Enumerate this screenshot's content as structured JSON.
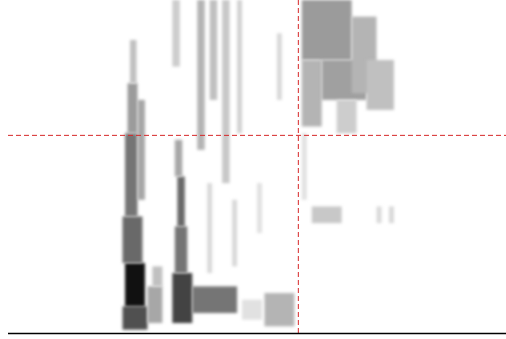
{
  "chart_data": {
    "type": "heatmap",
    "xlim": [
      0,
      100
    ],
    "ylim": [
      0,
      100
    ],
    "xticks": [],
    "yticks": [],
    "tick_labels": false,
    "grid": false,
    "color": "#111111",
    "reference_lines": [
      {
        "axis": "x",
        "value": 58.2,
        "color": "#d62728",
        "line_style": "dashed"
      },
      {
        "axis": "y",
        "value": 59.5,
        "color": "#d62728",
        "line_style": "dashed"
      }
    ],
    "cells": [
      {
        "x0": 23,
        "x1": 28,
        "y0": 1,
        "y1": 8,
        "value": 0.7
      },
      {
        "x0": 23.5,
        "x1": 27.5,
        "y0": 8,
        "y1": 21,
        "value": 0.95
      },
      {
        "x0": 23,
        "x1": 27,
        "y0": 21,
        "y1": 35,
        "value": 0.6
      },
      {
        "x0": 23.5,
        "x1": 26,
        "y0": 35,
        "y1": 60,
        "value": 0.55
      },
      {
        "x0": 24,
        "x1": 26,
        "y0": 60,
        "y1": 75,
        "value": 0.4
      },
      {
        "x0": 24.5,
        "x1": 25.8,
        "y0": 75,
        "y1": 88,
        "value": 0.25
      },
      {
        "x0": 26,
        "x1": 27.5,
        "y0": 40,
        "y1": 70,
        "value": 0.35
      },
      {
        "x0": 33,
        "x1": 37,
        "y0": 3,
        "y1": 18,
        "value": 0.75
      },
      {
        "x0": 37,
        "x1": 46,
        "y0": 6,
        "y1": 14,
        "value": 0.55
      },
      {
        "x0": 33.5,
        "x1": 36,
        "y0": 18,
        "y1": 32,
        "value": 0.55
      },
      {
        "x0": 34,
        "x1": 35.5,
        "y0": 32,
        "y1": 47,
        "value": 0.6
      },
      {
        "x0": 33.5,
        "x1": 35,
        "y0": 47,
        "y1": 58,
        "value": 0.35
      },
      {
        "x0": 28,
        "x1": 31,
        "y0": 3,
        "y1": 14,
        "value": 0.35
      },
      {
        "x0": 29,
        "x1": 31,
        "y0": 14,
        "y1": 20,
        "value": 0.25
      },
      {
        "x0": 33,
        "x1": 34.5,
        "y0": 80,
        "y1": 100,
        "value": 0.2
      },
      {
        "x0": 38,
        "x1": 39.5,
        "y0": 55,
        "y1": 100,
        "value": 0.3
      },
      {
        "x0": 40.5,
        "x1": 42,
        "y0": 70,
        "y1": 100,
        "value": 0.25
      },
      {
        "x0": 43,
        "x1": 44.5,
        "y0": 45,
        "y1": 100,
        "value": 0.22
      },
      {
        "x0": 46,
        "x1": 47,
        "y0": 60,
        "y1": 100,
        "value": 0.18
      },
      {
        "x0": 40,
        "x1": 41,
        "y0": 18,
        "y1": 45,
        "value": 0.15
      },
      {
        "x0": 45,
        "x1": 46,
        "y0": 20,
        "y1": 40,
        "value": 0.15
      },
      {
        "x0": 54,
        "x1": 55,
        "y0": 70,
        "y1": 90,
        "value": 0.15
      },
      {
        "x0": 50,
        "x1": 51,
        "y0": 30,
        "y1": 45,
        "value": 0.12
      },
      {
        "x0": 51.5,
        "x1": 57.5,
        "y0": 2,
        "y1": 12,
        "value": 0.3
      },
      {
        "x0": 47,
        "x1": 51,
        "y0": 4,
        "y1": 10,
        "value": 0.12
      },
      {
        "x0": 59,
        "x1": 69,
        "y0": 82,
        "y1": 100,
        "value": 0.4
      },
      {
        "x0": 59,
        "x1": 63,
        "y0": 62,
        "y1": 82,
        "value": 0.3
      },
      {
        "x0": 63,
        "x1": 72,
        "y0": 70,
        "y1": 82,
        "value": 0.38
      },
      {
        "x0": 69,
        "x1": 74,
        "y0": 72,
        "y1": 95,
        "value": 0.3
      },
      {
        "x0": 72,
        "x1": 77.5,
        "y0": 67,
        "y1": 82,
        "value": 0.25
      },
      {
        "x0": 66,
        "x1": 70,
        "y0": 60,
        "y1": 70,
        "value": 0.2
      },
      {
        "x0": 59,
        "x1": 60,
        "y0": 40,
        "y1": 60,
        "value": 0.12
      },
      {
        "x0": 61,
        "x1": 67,
        "y0": 33,
        "y1": 38,
        "value": 0.22
      },
      {
        "x0": 74,
        "x1": 75,
        "y0": 33,
        "y1": 38,
        "value": 0.15
      },
      {
        "x0": 76.5,
        "x1": 77.5,
        "y0": 33,
        "y1": 38,
        "value": 0.15
      }
    ]
  }
}
